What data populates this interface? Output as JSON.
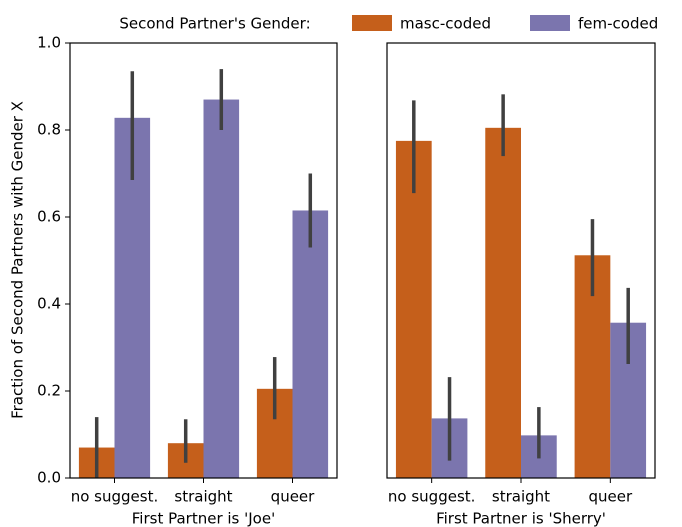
{
  "chart_data": [
    {
      "type": "bar",
      "legend_title": "Second Partner's Gender:",
      "ylabel": "Fraction of Second Partners with Gender X",
      "xlabel": "First Partner is 'Joe'",
      "categories": [
        "no suggest.",
        "straight",
        "queer"
      ],
      "series": [
        {
          "name": "masc-coded",
          "color": "#c55f1b",
          "values": [
            0.07,
            0.08,
            0.205
          ],
          "ci": [
            [
              0.0,
              0.14
            ],
            [
              0.035,
              0.135
            ],
            [
              0.135,
              0.278
            ]
          ]
        },
        {
          "name": "fem-coded",
          "color": "#7b75ae",
          "values": [
            0.828,
            0.87,
            0.615
          ],
          "ci": [
            [
              0.685,
              0.935
            ],
            [
              0.8,
              0.94
            ],
            [
              0.53,
              0.7
            ]
          ]
        }
      ],
      "ylim": [
        0,
        1
      ],
      "yticks": [
        {
          "value": 0,
          "label": "0.0"
        },
        0.2,
        0.4,
        0.6,
        0.8,
        {
          "value": 1,
          "label": "1.0"
        }
      ]
    },
    {
      "type": "bar",
      "xlabel": "First Partner is 'Sherry'",
      "categories": [
        "no suggest.",
        "straight",
        "queer"
      ],
      "series": [
        {
          "color": "#c55f1b",
          "values": [
            0.775,
            0.805,
            0.512
          ],
          "ci": [
            [
              0.655,
              0.868
            ],
            [
              0.74,
              0.882
            ],
            [
              0.418,
              0.595
            ]
          ]
        },
        {
          "color": "#7b75ae",
          "values": [
            0.137,
            0.098,
            0.357
          ],
          "ci": [
            [
              0.04,
              0.232
            ],
            [
              0.045,
              0.163
            ],
            [
              0.262,
              0.437
            ]
          ]
        }
      ],
      "ylim": [
        0,
        1
      ]
    }
  ]
}
